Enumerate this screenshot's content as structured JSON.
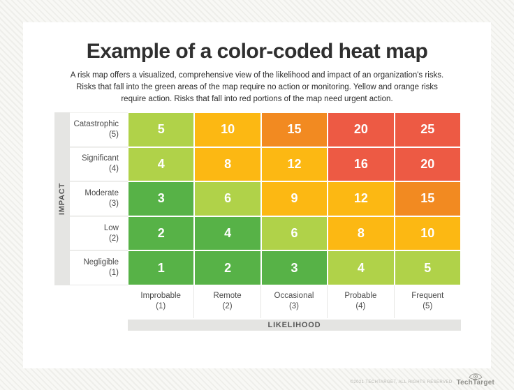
{
  "page_title": "Example of a color-coded heat map",
  "subtitle": {
    "line1": "A risk map offers a visualized, comprehensive view of the likelihood and impact of an organization's risks.",
    "line2": "Risks that fall into the green areas of the map require no action or monitoring. Yellow and orange risks",
    "line3": "require action. Risks that fall into red portions of the map need urgent action."
  },
  "chart_data": {
    "type": "heatmap",
    "title": "Example of a color-coded heat map",
    "x_axis": {
      "label": "LIKELIHOOD",
      "categories": [
        {
          "name": "Improbable",
          "value": "(1)"
        },
        {
          "name": "Remote",
          "value": "(2)"
        },
        {
          "name": "Occasional",
          "value": "(3)"
        },
        {
          "name": "Probable",
          "value": "(4)"
        },
        {
          "name": "Frequent",
          "value": "(5)"
        }
      ]
    },
    "y_axis": {
      "label": "IMPACT",
      "categories_top_to_bottom": [
        {
          "name": "Catastrophic",
          "value": "(5)"
        },
        {
          "name": "Significant",
          "value": "(4)"
        },
        {
          "name": "Moderate",
          "value": "(3)"
        },
        {
          "name": "Low",
          "value": "(2)"
        },
        {
          "name": "Negligible",
          "value": "(1)"
        }
      ]
    },
    "values": [
      [
        5,
        10,
        15,
        20,
        25
      ],
      [
        4,
        8,
        12,
        16,
        20
      ],
      [
        3,
        6,
        9,
        12,
        15
      ],
      [
        2,
        4,
        6,
        8,
        10
      ],
      [
        1,
        2,
        3,
        4,
        5
      ]
    ],
    "cell_colors": [
      [
        "light_green",
        "amber",
        "orange",
        "red",
        "red"
      ],
      [
        "light_green",
        "amber",
        "amber",
        "red",
        "red"
      ],
      [
        "green",
        "light_green",
        "amber",
        "amber",
        "orange"
      ],
      [
        "green",
        "green",
        "light_green",
        "amber",
        "amber"
      ],
      [
        "green",
        "green",
        "green",
        "light_green",
        "light_green"
      ]
    ],
    "palette": {
      "green": "#57b247",
      "light_green": "#b0d249",
      "amber": "#fcb813",
      "orange": "#f28a21",
      "red": "#ed5a44"
    },
    "legend_position": "none"
  },
  "footer": {
    "copyright": "©2021 TECHTARGET, ALL RIGHTS RESERVED",
    "brand": "TechTarget"
  }
}
